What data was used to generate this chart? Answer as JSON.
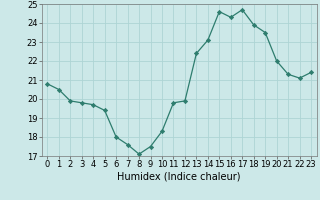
{
  "x": [
    0,
    1,
    2,
    3,
    4,
    5,
    6,
    7,
    8,
    9,
    10,
    11,
    12,
    13,
    14,
    15,
    16,
    17,
    18,
    19,
    20,
    21,
    22,
    23
  ],
  "y": [
    20.8,
    20.5,
    19.9,
    19.8,
    19.7,
    19.4,
    18.0,
    17.6,
    17.1,
    17.5,
    18.3,
    19.8,
    19.9,
    22.4,
    23.1,
    24.6,
    24.3,
    24.7,
    23.9,
    23.5,
    22.0,
    21.3,
    21.1,
    21.4
  ],
  "xlabel": "Humidex (Indice chaleur)",
  "line_color": "#2e7d6e",
  "marker_color": "#2e7d6e",
  "bg_color": "#cce8e8",
  "grid_color": "#aed4d4",
  "ylim": [
    17,
    25
  ],
  "xlim_min": -0.5,
  "xlim_max": 23.5,
  "yticks": [
    17,
    18,
    19,
    20,
    21,
    22,
    23,
    24,
    25
  ],
  "xticks": [
    0,
    1,
    2,
    3,
    4,
    5,
    6,
    7,
    8,
    9,
    10,
    11,
    12,
    13,
    14,
    15,
    16,
    17,
    18,
    19,
    20,
    21,
    22,
    23
  ],
  "tick_fontsize": 6.0,
  "xlabel_fontsize": 7.0
}
